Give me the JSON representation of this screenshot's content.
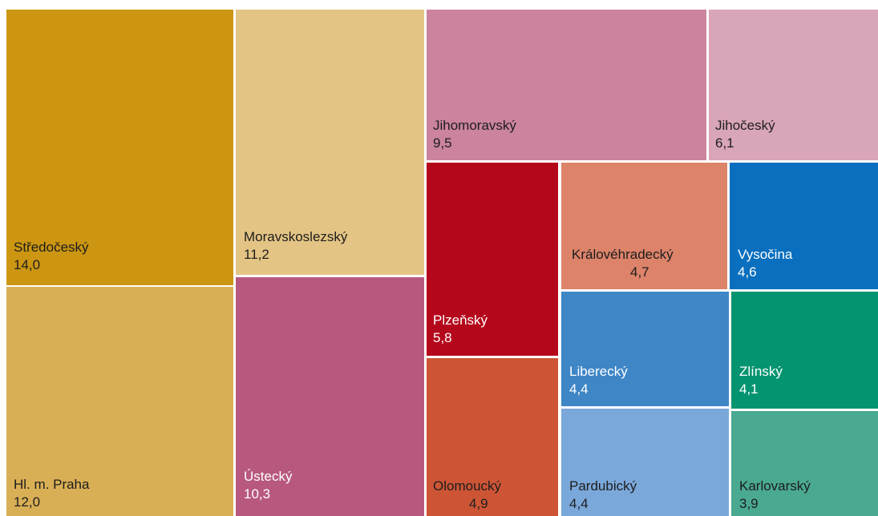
{
  "chart_data": {
    "type": "treemap",
    "title": "",
    "items": [
      {
        "name": "Středočeský",
        "value": "14,0",
        "color": "#cc9612"
      },
      {
        "name": "Hl. m. Praha",
        "value": "12,0",
        "color": "#d9af55"
      },
      {
        "name": "Moravskoslezský",
        "value": "11,2",
        "color": "#e4c485"
      },
      {
        "name": "Ústecký",
        "value": "10,3",
        "color": "#b8587e"
      },
      {
        "name": "Jihomoravský",
        "value": "9,5",
        "color": "#cb839e"
      },
      {
        "name": "Jihočeský",
        "value": "6,1",
        "color": "#d9a5b8"
      },
      {
        "name": "Plzeňský",
        "value": "5,8",
        "color": "#b5071b"
      },
      {
        "name": "Olomoucký",
        "value": "4,9",
        "color": "#cd5535"
      },
      {
        "name": "Královéhradecký",
        "value": "4,7",
        "color": "#dc836a"
      },
      {
        "name": "Vysočina",
        "value": "4,6",
        "color": "#0a6fbe"
      },
      {
        "name": "Liberecký",
        "value": "4,4",
        "color": "#3e86c6"
      },
      {
        "name": "Pardubický",
        "value": "4,4",
        "color": "#7ba8da"
      },
      {
        "name": "Zlínský",
        "value": "4,1",
        "color": "#059470"
      },
      {
        "name": "Karlovarský",
        "value": "3,9",
        "color": "#4aa991"
      }
    ]
  }
}
